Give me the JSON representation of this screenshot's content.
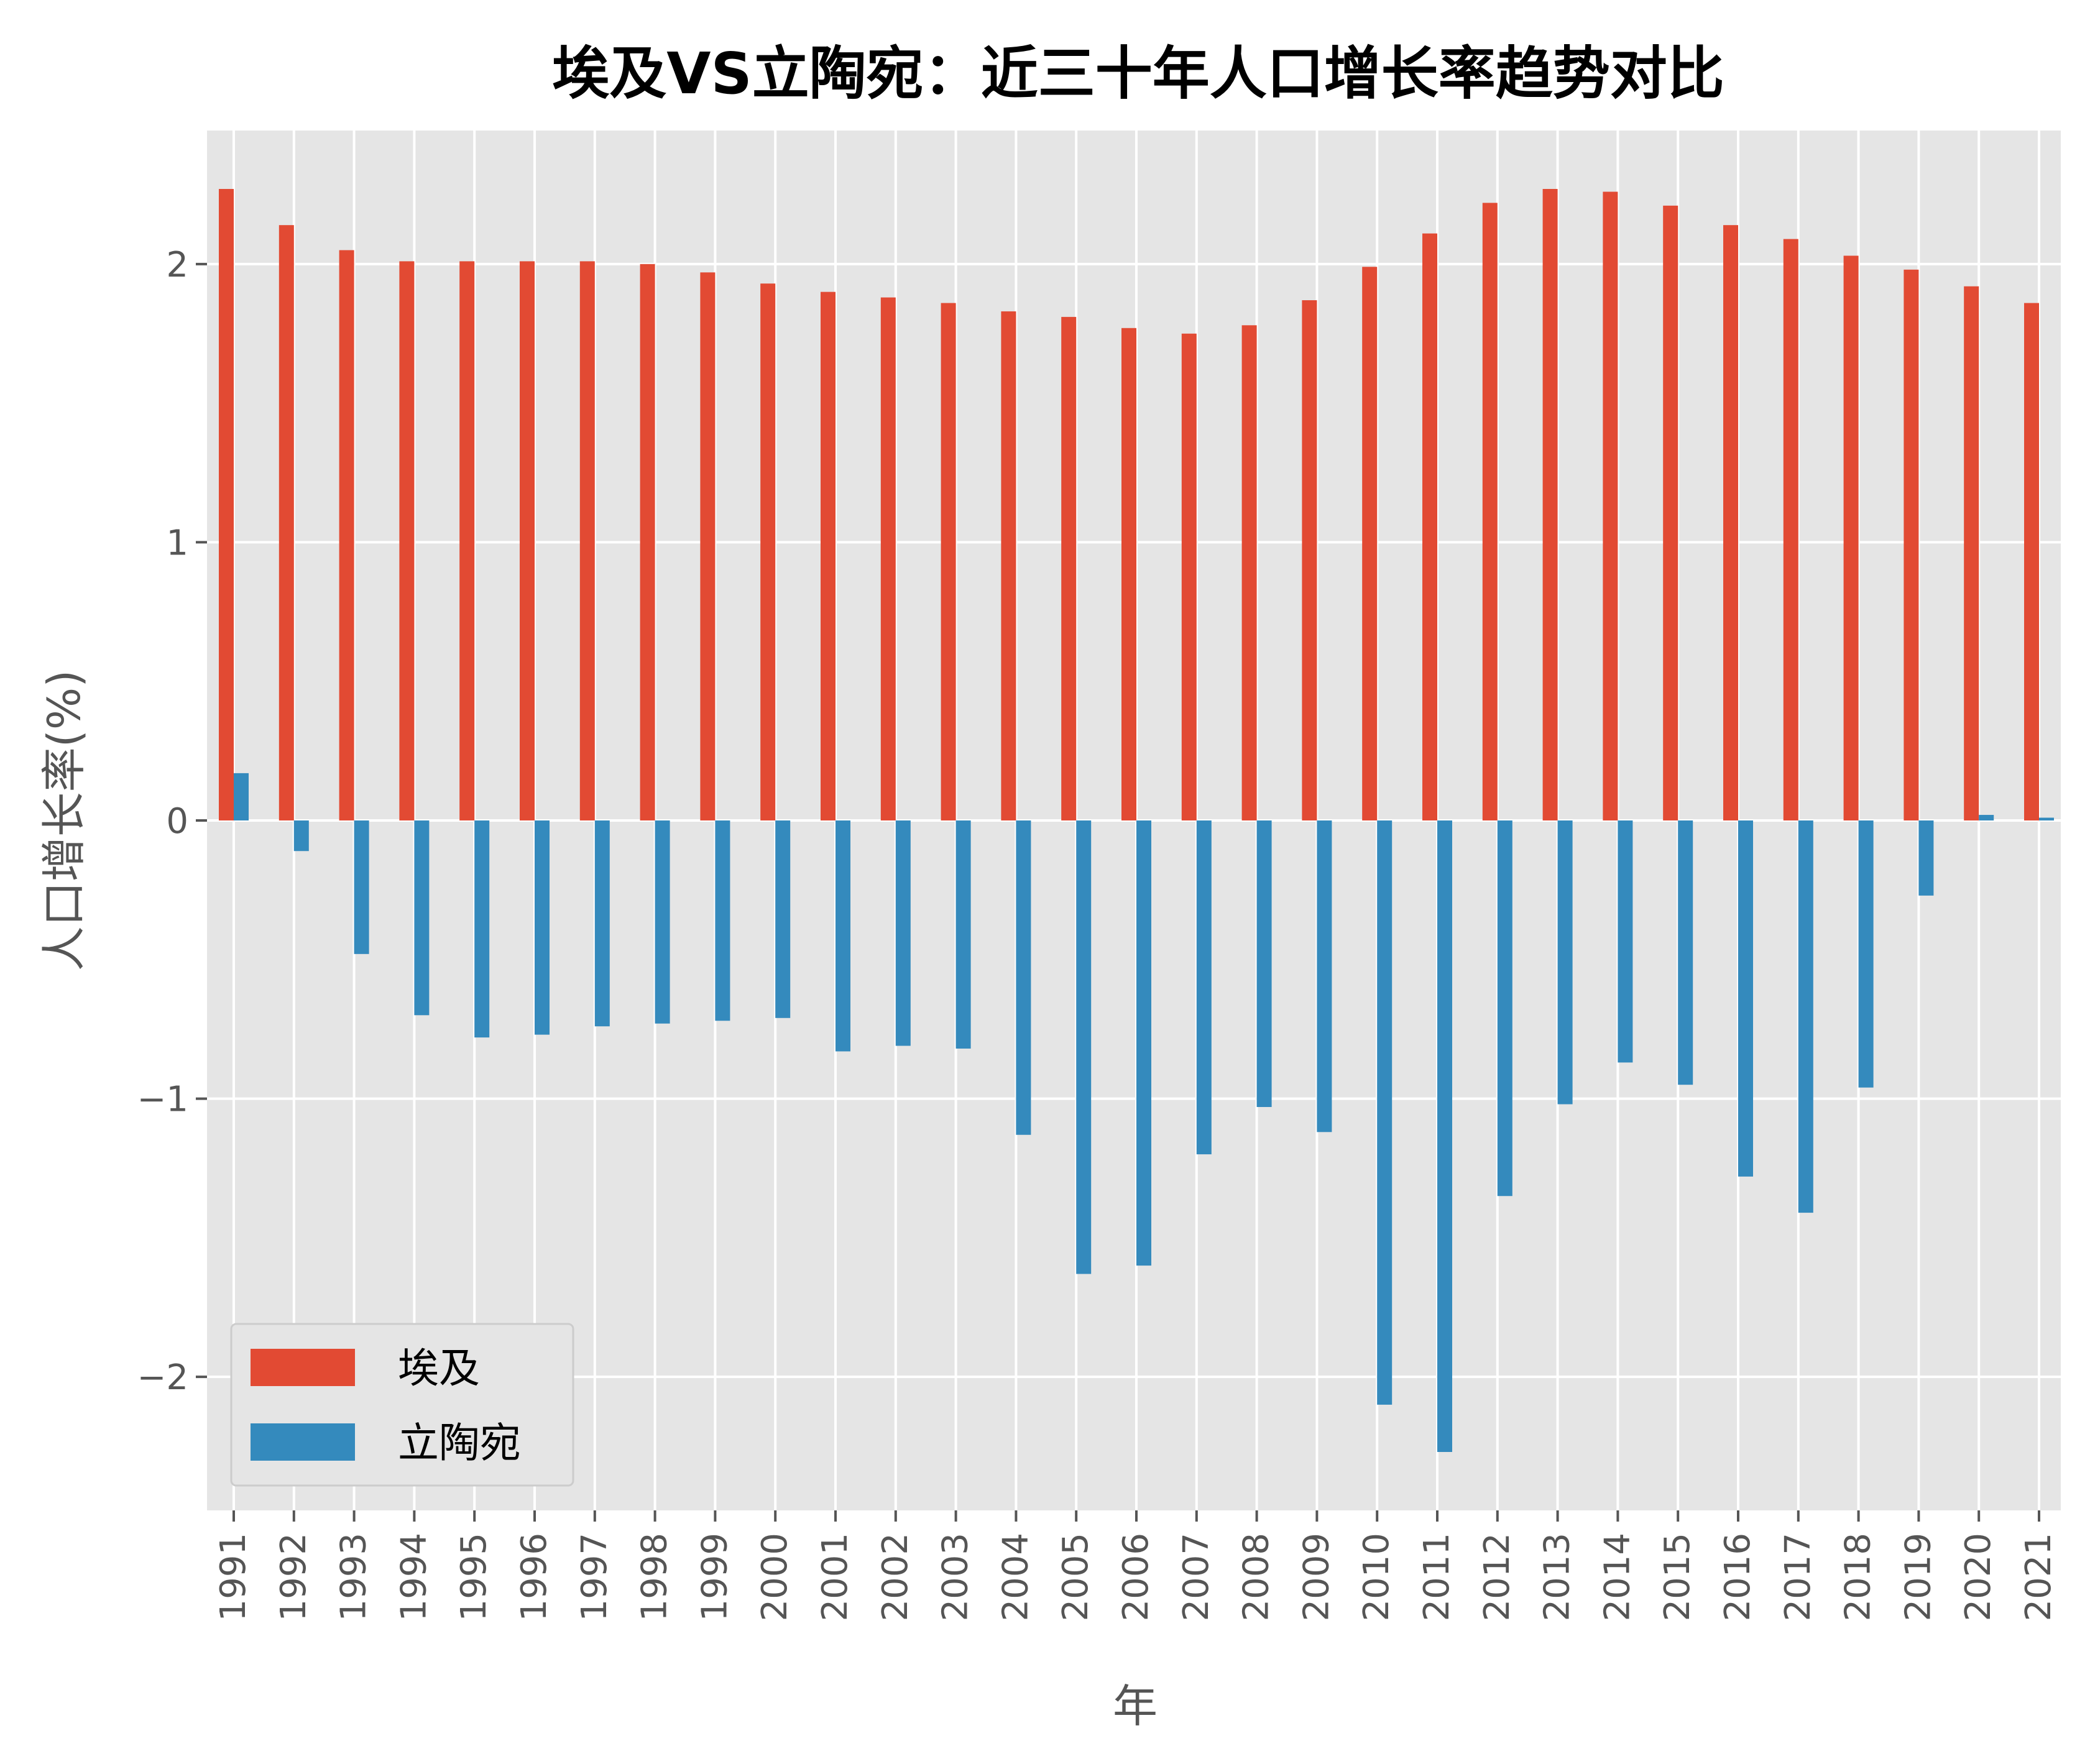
{
  "chart_data": {
    "type": "bar",
    "title": "埃及VS立陶宛：近三十年人口增长率趋势对比",
    "xlabel": "年",
    "ylabel": "人口增长率(%)",
    "categories": [
      "1991",
      "1992",
      "1993",
      "1994",
      "1995",
      "1996",
      "1997",
      "1998",
      "1999",
      "2000",
      "2001",
      "2002",
      "2003",
      "2004",
      "2005",
      "2006",
      "2007",
      "2008",
      "2009",
      "2010",
      "2011",
      "2012",
      "2013",
      "2014",
      "2015",
      "2016",
      "2017",
      "2018",
      "2019",
      "2020",
      "2021"
    ],
    "series": [
      {
        "name": "埃及",
        "color": "#E24A33",
        "values": [
          2.27,
          2.14,
          2.05,
          2.01,
          2.01,
          2.01,
          2.01,
          2.0,
          1.97,
          1.93,
          1.9,
          1.88,
          1.86,
          1.83,
          1.81,
          1.77,
          1.75,
          1.78,
          1.87,
          1.99,
          2.11,
          2.22,
          2.27,
          2.26,
          2.21,
          2.14,
          2.09,
          2.03,
          1.98,
          1.92,
          1.86
        ]
      },
      {
        "name": "立陶宛",
        "color": "#348ABD",
        "values": [
          0.17,
          -0.11,
          -0.48,
          -0.7,
          -0.78,
          -0.77,
          -0.74,
          -0.73,
          -0.72,
          -0.71,
          -0.83,
          -0.81,
          -0.82,
          -1.13,
          -1.63,
          -1.6,
          -1.2,
          -1.03,
          -1.12,
          -2.1,
          -2.27,
          -1.35,
          -1.02,
          -0.87,
          -0.95,
          -1.28,
          -1.41,
          -0.96,
          -0.27,
          0.02,
          0.01
        ]
      }
    ],
    "yticks": [
      -2,
      -1,
      0,
      1,
      2
    ],
    "ytick_labels": [
      "−2",
      "−1",
      "0",
      "1",
      "2"
    ],
    "ylim": [
      -2.48,
      2.48
    ],
    "grid": true,
    "legend": "lower-left",
    "background": "#E5E5E5",
    "grid_color": "#FFFFFF"
  }
}
